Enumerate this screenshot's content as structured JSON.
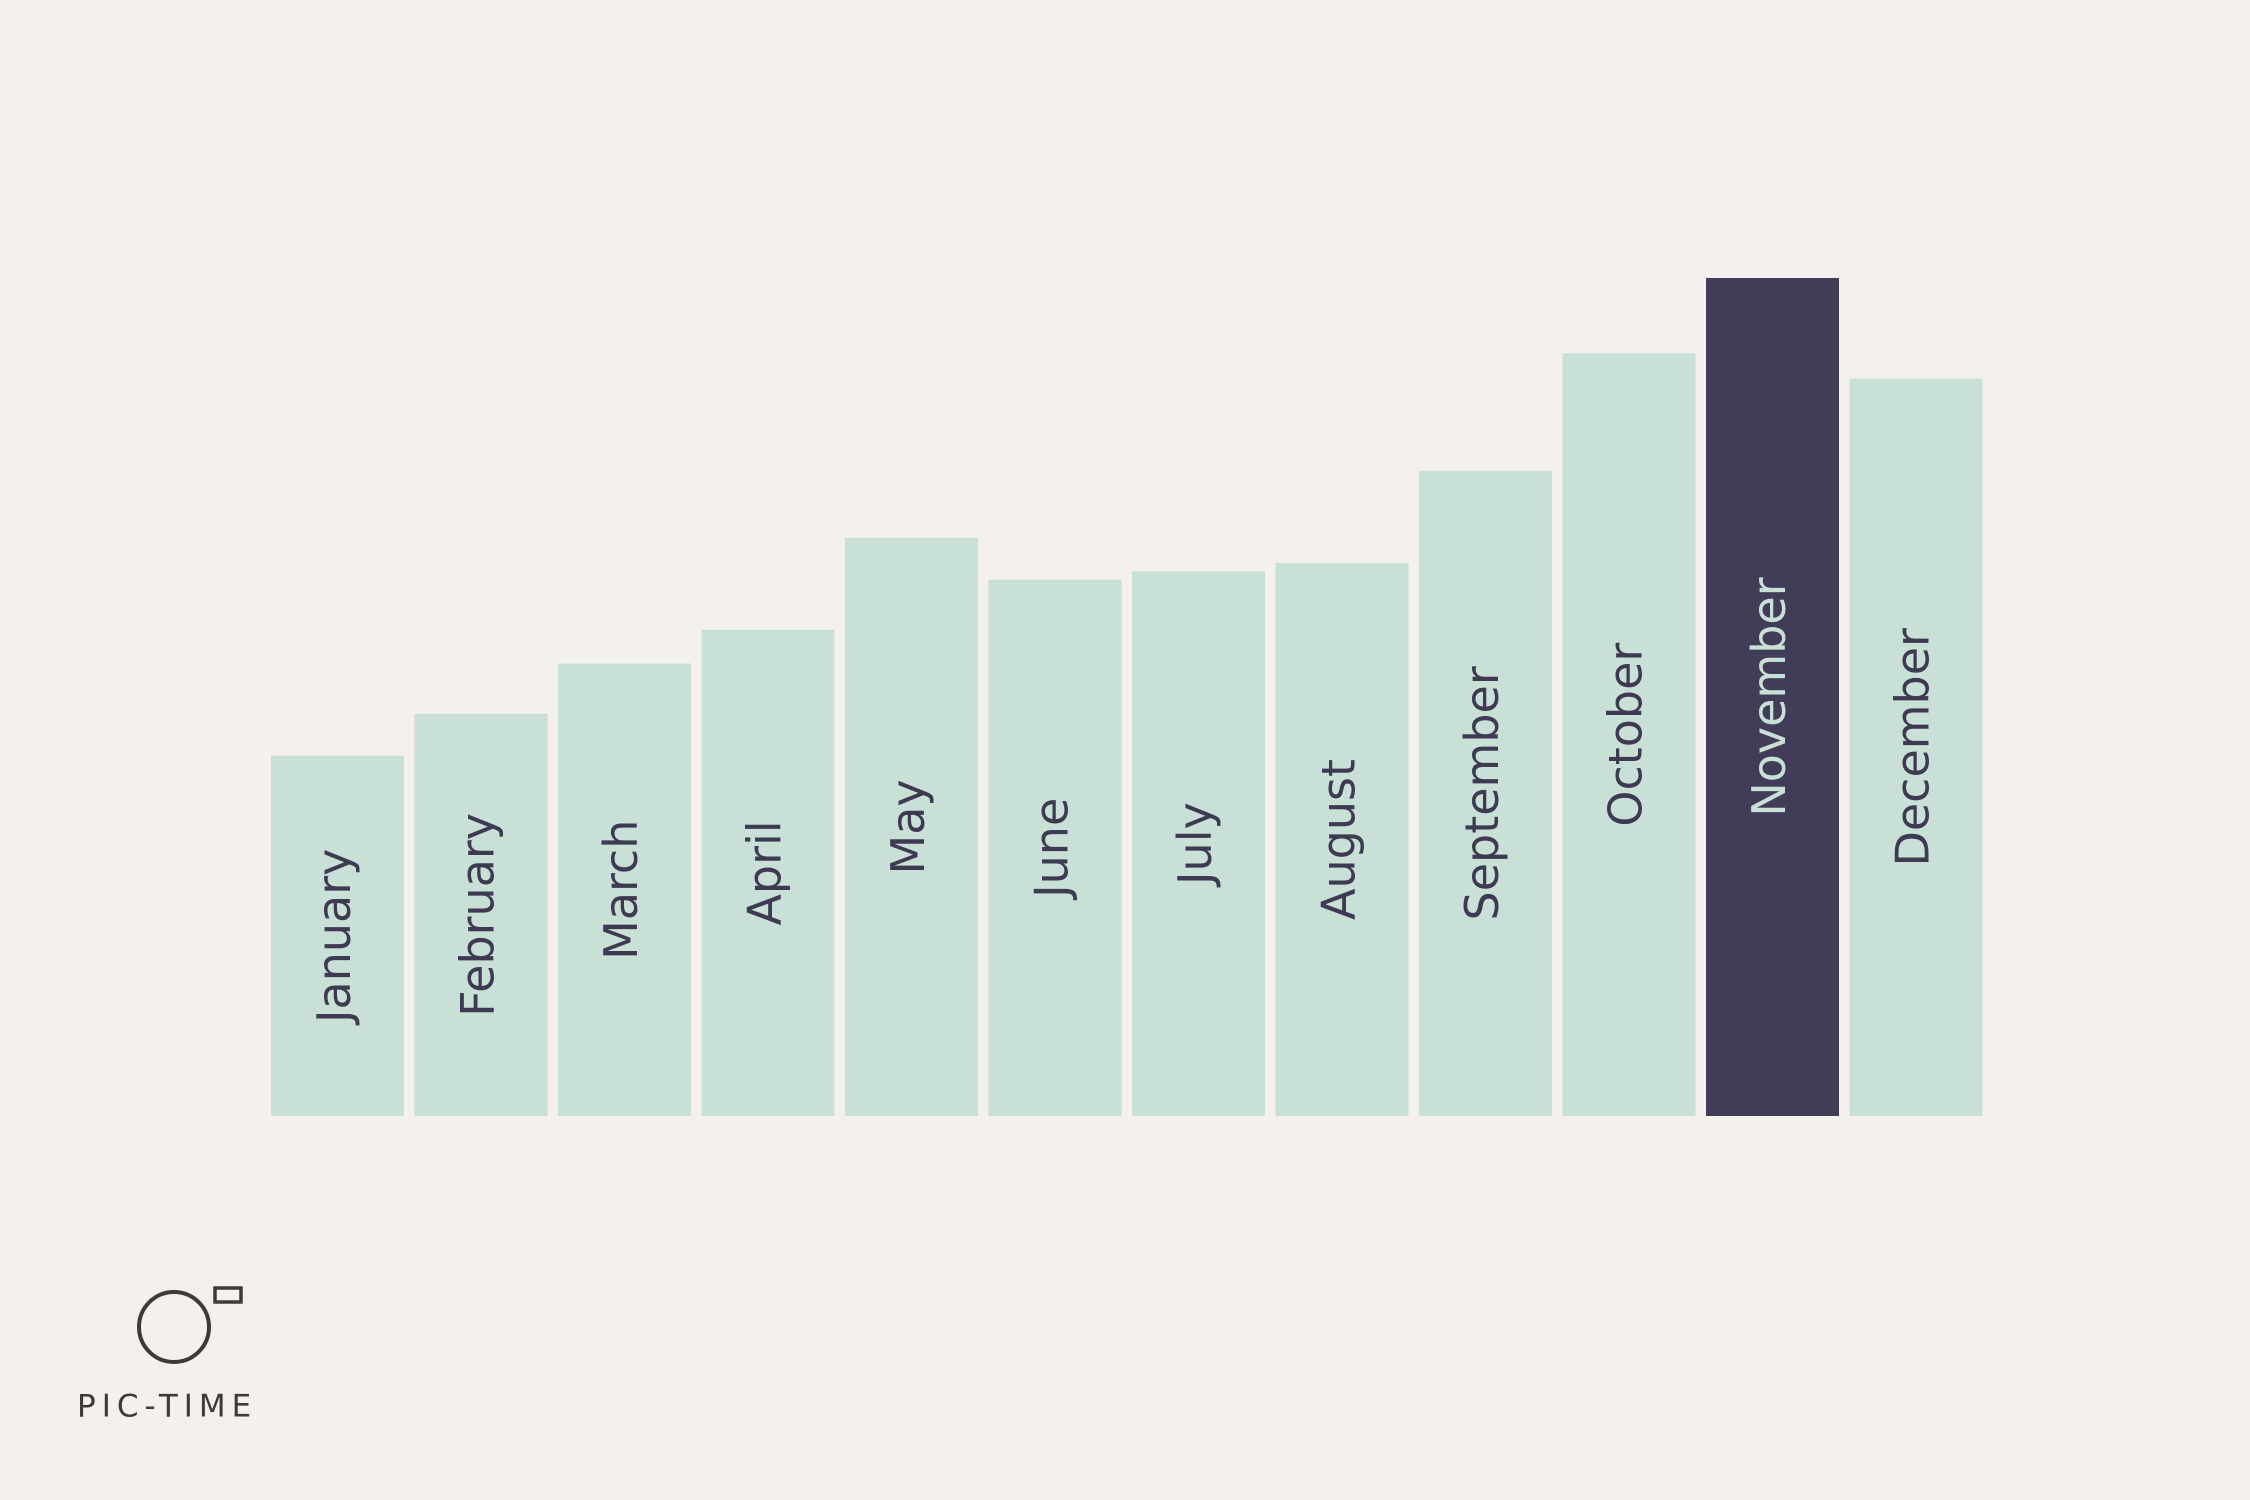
{
  "chart_data": {
    "type": "bar",
    "categories": [
      "January",
      "February",
      "March",
      "April",
      "May",
      "June",
      "July",
      "August",
      "September",
      "October",
      "November",
      "December"
    ],
    "values": [
      43,
      48,
      54,
      58,
      69,
      64,
      65,
      66,
      77,
      91,
      100,
      88
    ],
    "colors": [
      "#c8e0d5",
      "#c8e0d5",
      "#c8e0d5",
      "#c8e0d5",
      "#c8e0d5",
      "#c8e0d5",
      "#c8e0d5",
      "#c8e0d5",
      "#c8e0d5",
      "#c8e0d5",
      "#413c58",
      "#c8e0d5"
    ],
    "ylim": [
      0,
      100
    ],
    "grid": false
  },
  "logo": "PIC-TIME"
}
